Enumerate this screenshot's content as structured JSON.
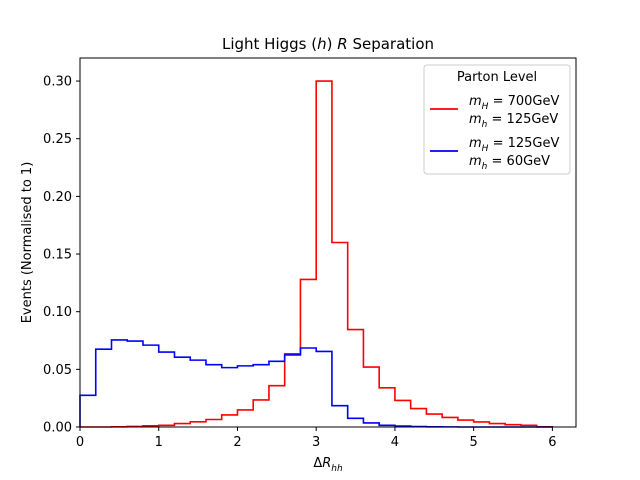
{
  "chart_data": {
    "type": "line",
    "title": "Light Higgs (h) R Separation",
    "xlabel": "ΔR_hh",
    "ylabel": "Events (Normalised to 1)",
    "xlim": [
      0,
      6.3
    ],
    "ylim": [
      0,
      0.32
    ],
    "xticks": [
      0,
      1,
      2,
      3,
      4,
      5,
      6
    ],
    "yticks": [
      0.0,
      0.05,
      0.1,
      0.15,
      0.2,
      0.25,
      0.3
    ],
    "ytick_labels": [
      "0.00",
      "0.05",
      "0.10",
      "0.15",
      "0.20",
      "0.25",
      "0.30"
    ],
    "bin_edges": [
      0,
      0.2,
      0.4,
      0.6,
      0.8,
      1.0,
      1.2,
      1.4,
      1.6,
      1.8,
      2.0,
      2.2,
      2.4,
      2.6,
      2.8,
      3.0,
      3.2,
      3.4,
      3.6,
      3.8,
      4.0,
      4.2,
      4.4,
      4.6,
      4.8,
      5.0,
      5.2,
      5.4,
      5.6,
      5.8,
      6.0
    ],
    "legend": {
      "title": "Parton Level",
      "position": "upper right"
    },
    "series": [
      {
        "name": "m_H = 700GeV / m_h = 125GeV",
        "label_line1": "m_H = 700GeV",
        "label_line2": "m_h = 125GeV",
        "color": "#ff0000",
        "values": [
          0.0,
          0.0,
          0.0002,
          0.0005,
          0.001,
          0.0015,
          0.003,
          0.0045,
          0.0065,
          0.0105,
          0.0148,
          0.0235,
          0.0358,
          0.0635,
          0.128,
          0.3,
          0.16,
          0.0845,
          0.052,
          0.034,
          0.023,
          0.016,
          0.0112,
          0.0083,
          0.006,
          0.0044,
          0.003,
          0.002,
          0.0015,
          0.0002
        ]
      },
      {
        "name": "m_H = 125GeV / m_h = 60GeV",
        "label_line1": "m_H = 125GeV",
        "label_line2": "m_h = 60GeV",
        "color": "#0000ff",
        "values": [
          0.0275,
          0.0675,
          0.0755,
          0.0745,
          0.071,
          0.065,
          0.0605,
          0.058,
          0.054,
          0.0515,
          0.053,
          0.054,
          0.057,
          0.0625,
          0.0685,
          0.0655,
          0.0185,
          0.0075,
          0.0035,
          0.0015,
          0.0008,
          0.0004,
          0.0002,
          0.0001,
          0.0,
          0.0,
          0.0,
          0.0,
          0.0,
          0.0
        ]
      }
    ]
  }
}
